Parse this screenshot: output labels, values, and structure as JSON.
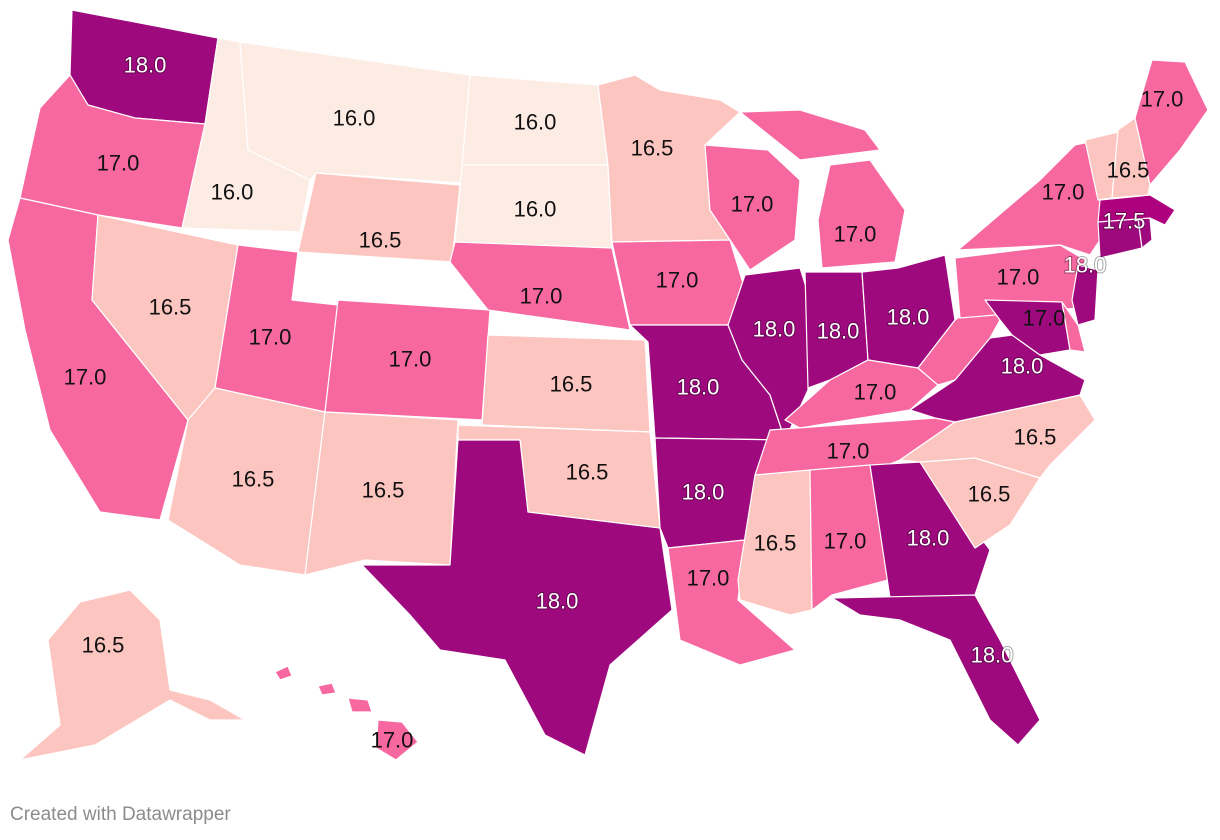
{
  "legend": {
    "color_scale": {
      "16.0": "#fdece4",
      "16.5": "#fcc5c0",
      "17.0": "#f768a1",
      "17.5": "#ae017e",
      "18.0": "#9e0a7e"
    }
  },
  "states": [
    {
      "id": "WA",
      "value": "18.0"
    },
    {
      "id": "OR",
      "value": "17.0"
    },
    {
      "id": "CA",
      "value": "17.0"
    },
    {
      "id": "ID",
      "value": "16.0"
    },
    {
      "id": "NV",
      "value": "16.5"
    },
    {
      "id": "MT",
      "value": "16.0"
    },
    {
      "id": "WY",
      "value": "16.5"
    },
    {
      "id": "UT",
      "value": "17.0"
    },
    {
      "id": "AZ",
      "value": "16.5"
    },
    {
      "id": "CO",
      "value": "17.0"
    },
    {
      "id": "NM",
      "value": "16.5"
    },
    {
      "id": "ND",
      "value": "16.0"
    },
    {
      "id": "SD",
      "value": "16.0"
    },
    {
      "id": "NE",
      "value": "17.0"
    },
    {
      "id": "KS",
      "value": "16.5"
    },
    {
      "id": "OK",
      "value": "16.5"
    },
    {
      "id": "TX",
      "value": "18.0"
    },
    {
      "id": "MN",
      "value": "16.5"
    },
    {
      "id": "IA",
      "value": "17.0"
    },
    {
      "id": "MO",
      "value": "18.0"
    },
    {
      "id": "AR",
      "value": "18.0"
    },
    {
      "id": "LA",
      "value": "17.0"
    },
    {
      "id": "WI",
      "value": "17.0"
    },
    {
      "id": "IL",
      "value": "18.0"
    },
    {
      "id": "MI",
      "value": "17.0"
    },
    {
      "id": "IN",
      "value": "18.0"
    },
    {
      "id": "OH",
      "value": "18.0"
    },
    {
      "id": "KY",
      "value": "17.0"
    },
    {
      "id": "TN",
      "value": "17.0"
    },
    {
      "id": "MS",
      "value": "16.5"
    },
    {
      "id": "AL",
      "value": "17.0"
    },
    {
      "id": "GA",
      "value": "18.0"
    },
    {
      "id": "FL",
      "value": "18.0"
    },
    {
      "id": "SC",
      "value": "16.5"
    },
    {
      "id": "NC",
      "value": "16.5"
    },
    {
      "id": "VA",
      "value": "18.0"
    },
    {
      "id": "WV",
      "value": "17.0"
    },
    {
      "id": "PA",
      "value": "17.0"
    },
    {
      "id": "NY",
      "value": "17.0"
    },
    {
      "id": "NJ",
      "value": "18.0"
    },
    {
      "id": "MD",
      "value": "18.0"
    },
    {
      "id": "DE",
      "value": "17.0"
    },
    {
      "id": "CT",
      "value": "18.0"
    },
    {
      "id": "MA",
      "value": "17.5"
    },
    {
      "id": "VT",
      "value": "16.5"
    },
    {
      "id": "NH",
      "value": "16.5"
    },
    {
      "id": "ME",
      "value": "17.0"
    },
    {
      "id": "RI",
      "value": "18.0"
    },
    {
      "id": "AK",
      "value": "16.5"
    },
    {
      "id": "HI",
      "value": "17.0"
    }
  ],
  "footer": {
    "credit": "Created with Datawrapper"
  }
}
